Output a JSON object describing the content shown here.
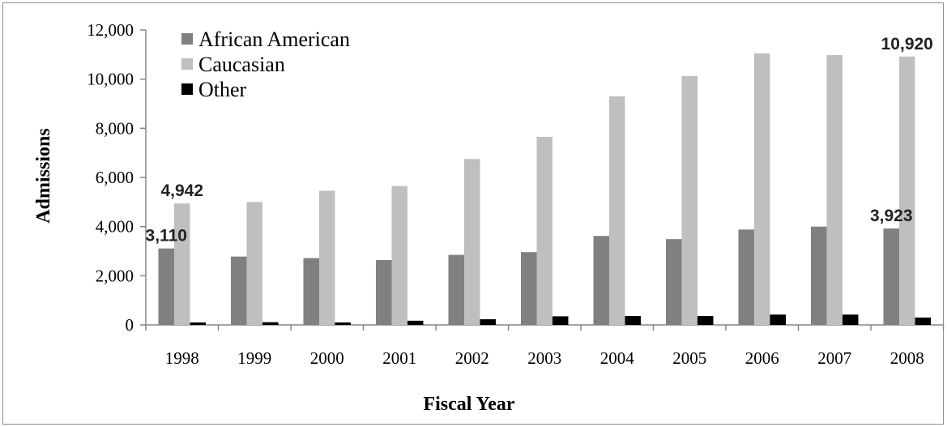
{
  "chart_data": {
    "type": "bar",
    "title": "",
    "xlabel": "Fiscal Year",
    "ylabel": "Admissions",
    "categories": [
      "1998",
      "1999",
      "2000",
      "2001",
      "2002",
      "2003",
      "2004",
      "2005",
      "2006",
      "2007",
      "2008"
    ],
    "series": [
      {
        "name": "African American",
        "color": "#808080",
        "values": [
          3110,
          2780,
          2720,
          2640,
          2850,
          2960,
          3620,
          3490,
          3880,
          4000,
          3923
        ]
      },
      {
        "name": "Caucasian",
        "color": "#bfbfbf",
        "values": [
          4942,
          5000,
          5460,
          5650,
          6750,
          7650,
          9300,
          10120,
          11050,
          10980,
          10920
        ]
      },
      {
        "name": "Other",
        "color": "#000000",
        "values": [
          100,
          110,
          100,
          170,
          230,
          350,
          360,
          360,
          420,
          420,
          300
        ]
      }
    ],
    "ylim": [
      0,
      12000
    ],
    "yticks": [
      "0",
      "2,000",
      "4,000",
      "6,000",
      "8,000",
      "10,000",
      "12,000"
    ],
    "grid": false,
    "legend_position": "top-left",
    "data_labels": [
      {
        "text": "3,110",
        "series": 0,
        "category": 0
      },
      {
        "text": "4,942",
        "series": 1,
        "category": 0
      },
      {
        "text": "3,923",
        "series": 0,
        "category": 10
      },
      {
        "text": "10,920",
        "series": 1,
        "category": 10
      }
    ]
  }
}
